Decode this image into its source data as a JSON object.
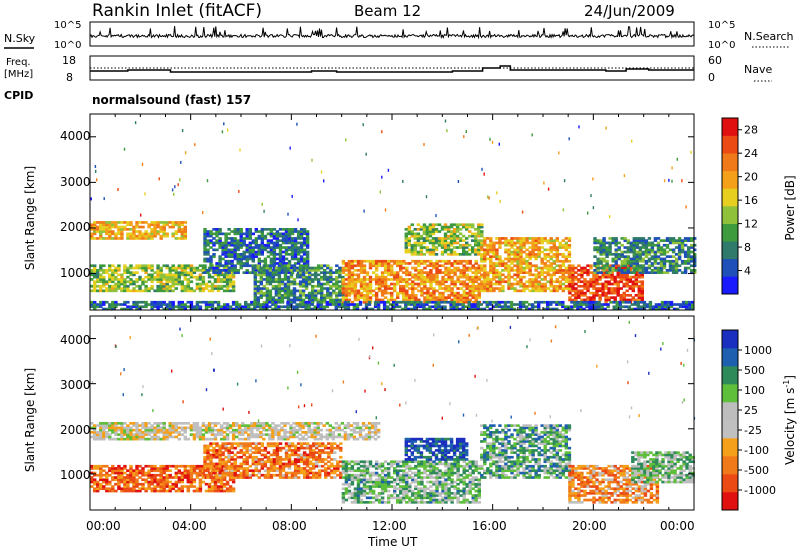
{
  "header": {
    "station": "Rankin Inlet (fitACF)",
    "beam": "Beam 12",
    "date": "24/Jun/2009"
  },
  "sky_panel": {
    "left_label": "N.Sky",
    "left_ticks": [
      "10^5",
      "10^0"
    ],
    "right_label": "N.Search",
    "right_ticks": [
      "10^5",
      "10^0"
    ]
  },
  "freq_panel": {
    "left_label_1": "Freq.",
    "left_label_2": "[MHz]",
    "left_ticks": [
      "18",
      "8"
    ],
    "right_label": "Nave",
    "right_ticks": [
      "60",
      "0"
    ]
  },
  "cpid": {
    "label": "CPID",
    "text": "normalsound (fast) 157"
  },
  "colors": {
    "power": [
      "#1a1aff",
      "#1f4fb8",
      "#2f7a6a",
      "#3d9a3d",
      "#8fc23a",
      "#e6cf1e",
      "#f5a01a",
      "#f07a1a",
      "#ec4a14",
      "#e01010"
    ],
    "velocity": [
      "#e01010",
      "#ec4a14",
      "#f07a1a",
      "#f5a01a",
      "#c0c0c0",
      "#bdbdbd",
      "#5fbf3a",
      "#2f8a5a",
      "#1f5fb0",
      "#1a2fbf"
    ]
  },
  "chart_data": [
    {
      "type": "heatmap",
      "title": "",
      "ylabel": "Slant Range [km]",
      "xlabel": "",
      "yticks": [
        "1000",
        "2000",
        "3000",
        "4000"
      ],
      "ylim": [
        200,
        4500
      ],
      "xlim": [
        "00:00",
        "24:00"
      ],
      "colorbar": {
        "label": "Power [dB]",
        "ticks": [
          "4",
          "8",
          "12",
          "16",
          "20",
          "24",
          "28"
        ],
        "range": [
          0,
          30
        ]
      },
      "regions": [
        {
          "t0": 0.0,
          "t1": 3.8,
          "r0": 1750,
          "r1": 2150,
          "level": 0.62
        },
        {
          "t0": 0.0,
          "t1": 5.7,
          "r0": 600,
          "r1": 1200,
          "level": 0.45
        },
        {
          "t0": 4.5,
          "t1": 8.6,
          "r0": 1000,
          "r1": 2000,
          "level": 0.22
        },
        {
          "t0": 6.5,
          "t1": 10.0,
          "r0": 350,
          "r1": 1200,
          "level": 0.3
        },
        {
          "t0": 10.0,
          "t1": 15.5,
          "r0": 350,
          "r1": 1300,
          "level": 0.7
        },
        {
          "t0": 12.5,
          "t1": 15.5,
          "r0": 1400,
          "r1": 2100,
          "level": 0.45
        },
        {
          "t0": 15.5,
          "t1": 19.0,
          "r0": 600,
          "r1": 1800,
          "level": 0.65
        },
        {
          "t0": 19.0,
          "t1": 22.0,
          "r0": 350,
          "r1": 1200,
          "level": 0.85
        },
        {
          "t0": 20.0,
          "t1": 24.0,
          "r0": 1000,
          "r1": 1800,
          "level": 0.28
        },
        {
          "t0": 0.0,
          "t1": 24.0,
          "r0": 200,
          "r1": 400,
          "level": 0.2
        }
      ]
    },
    {
      "type": "heatmap",
      "title": "",
      "ylabel": "Slant Range [km]",
      "xlabel": "Time UT",
      "yticks": [
        "1000",
        "2000",
        "3000",
        "4000"
      ],
      "xticks": [
        "00:00",
        "04:00",
        "08:00",
        "12:00",
        "16:00",
        "20:00",
        "00:00"
      ],
      "ylim": [
        200,
        4500
      ],
      "xlim": [
        "00:00",
        "24:00"
      ],
      "colorbar": {
        "label": "Velocity [m s^-1]",
        "ticks": [
          "1000",
          "500",
          "100",
          "25",
          "-25",
          "-100",
          "-500",
          "-1000"
        ],
        "range": [
          -1000,
          1000
        ]
      },
      "regions": [
        {
          "t0": 0.0,
          "t1": 11.5,
          "r0": 1750,
          "r1": 2150,
          "level": 0.48
        },
        {
          "t0": 0.0,
          "t1": 5.7,
          "r0": 600,
          "r1": 1200,
          "level": 0.2
        },
        {
          "t0": 4.5,
          "t1": 10.0,
          "r0": 900,
          "r1": 1700,
          "level": 0.25
        },
        {
          "t0": 10.0,
          "t1": 15.5,
          "r0": 350,
          "r1": 1300,
          "level": 0.65
        },
        {
          "t0": 12.5,
          "t1": 15.0,
          "r0": 1300,
          "r1": 1800,
          "level": 0.88
        },
        {
          "t0": 15.5,
          "t1": 19.0,
          "r0": 900,
          "r1": 2100,
          "level": 0.7
        },
        {
          "t0": 19.0,
          "t1": 22.5,
          "r0": 350,
          "r1": 1200,
          "level": 0.3
        },
        {
          "t0": 21.5,
          "t1": 24.0,
          "r0": 800,
          "r1": 1500,
          "level": 0.62
        }
      ]
    }
  ]
}
